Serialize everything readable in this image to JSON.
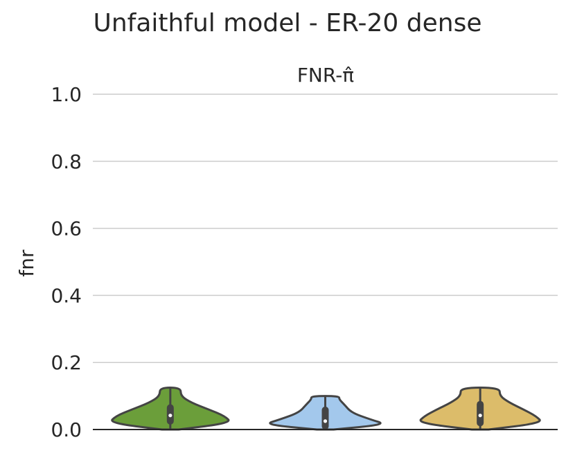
{
  "chart_data": {
    "type": "violin",
    "title": "Unfaithful model - ER-20 dense",
    "subtitle": "FNR-π̂",
    "ylabel": "fnr",
    "xlabel": "",
    "ylim": [
      0.0,
      1.0
    ],
    "yticks": [
      "0.0",
      "0.2",
      "0.4",
      "0.6",
      "0.8",
      "1.0"
    ],
    "grid": true,
    "series": [
      {
        "color": "#6b9e3a",
        "min": 0.0,
        "max": 0.125,
        "q1": 0.025,
        "median": 0.042,
        "q3": 0.065,
        "profile": [
          [
            0.0,
            0.12
          ],
          [
            0.02,
            0.88
          ],
          [
            0.04,
            0.78
          ],
          [
            0.06,
            0.55
          ],
          [
            0.08,
            0.3
          ],
          [
            0.1,
            0.15
          ],
          [
            0.125,
            0.15
          ]
        ]
      },
      {
        "color": "#a3c8ec",
        "min": 0.0,
        "max": 0.1,
        "q1": 0.01,
        "median": 0.025,
        "q3": 0.058,
        "profile": [
          [
            0.0,
            0.12
          ],
          [
            0.015,
            0.88
          ],
          [
            0.03,
            0.65
          ],
          [
            0.05,
            0.38
          ],
          [
            0.075,
            0.27
          ],
          [
            0.09,
            0.2
          ],
          [
            0.1,
            0.2
          ]
        ]
      },
      {
        "color": "#dcbc6a",
        "min": 0.0,
        "max": 0.125,
        "q1": 0.02,
        "median": 0.042,
        "q3": 0.075,
        "profile": [
          [
            0.0,
            0.12
          ],
          [
            0.02,
            0.9
          ],
          [
            0.04,
            0.8
          ],
          [
            0.06,
            0.62
          ],
          [
            0.08,
            0.42
          ],
          [
            0.1,
            0.28
          ],
          [
            0.125,
            0.28
          ]
        ]
      }
    ]
  }
}
